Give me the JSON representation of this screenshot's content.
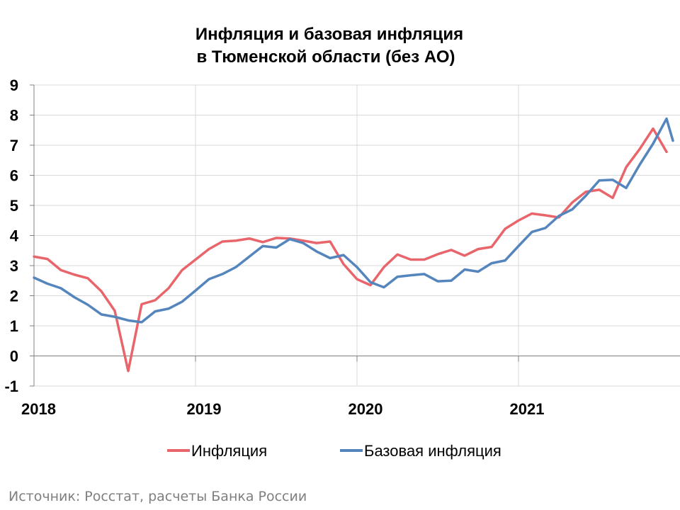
{
  "chart_data": {
    "type": "line",
    "title_line1": "Инфляция и базовая инфляция",
    "title_line2": "в  Тюменской области (без АО)",
    "xlabel": "",
    "ylabel": "",
    "ylim": [
      -1,
      9
    ],
    "y_ticks": [
      "-1",
      "0",
      "1",
      "2",
      "3",
      "4",
      "5",
      "6",
      "7",
      "8",
      "9"
    ],
    "x_ticks": [
      "2018",
      "2019",
      "2020",
      "2021"
    ],
    "grid": true,
    "legend_position": "bottom",
    "x_months": [
      "2018-01",
      "2018-02",
      "2018-03",
      "2018-04",
      "2018-05",
      "2018-06",
      "2018-07",
      "2018-08",
      "2018-09",
      "2018-10",
      "2018-11",
      "2018-12",
      "2019-01",
      "2019-02",
      "2019-03",
      "2019-04",
      "2019-05",
      "2019-06",
      "2019-07",
      "2019-08",
      "2019-09",
      "2019-10",
      "2019-11",
      "2019-12",
      "2020-01",
      "2020-02",
      "2020-03",
      "2020-04",
      "2020-05",
      "2020-06",
      "2020-07",
      "2020-08",
      "2020-09",
      "2020-10",
      "2020-11",
      "2020-12",
      "2021-01",
      "2021-02",
      "2021-03",
      "2021-04",
      "2021-05",
      "2021-06",
      "2021-07",
      "2021-08",
      "2021-09",
      "2021-10",
      "2021-11",
      "2021-12"
    ],
    "series": [
      {
        "name": "Инфляция",
        "color": "#e8666b",
        "values": [
          3.3,
          3.22,
          2.85,
          2.7,
          2.58,
          2.15,
          1.5,
          -0.5,
          1.72,
          1.85,
          2.25,
          2.85,
          3.2,
          3.55,
          3.8,
          3.83,
          3.9,
          3.78,
          3.92,
          3.9,
          3.83,
          3.75,
          3.8,
          3.05,
          2.55,
          2.35,
          2.95,
          3.37,
          3.2,
          3.2,
          3.38,
          3.52,
          3.33,
          3.55,
          3.62,
          4.22,
          4.5,
          4.73,
          4.67,
          4.6,
          5.1,
          5.45,
          5.52,
          5.25,
          6.27,
          6.87,
          7.55,
          6.78
        ]
      },
      {
        "name": "Базовая инфляция",
        "color": "#5585bd",
        "values": [
          2.6,
          2.4,
          2.25,
          1.95,
          1.7,
          1.38,
          1.3,
          1.18,
          1.12,
          1.48,
          1.57,
          1.8,
          2.17,
          2.55,
          2.72,
          2.95,
          3.3,
          3.65,
          3.6,
          3.88,
          3.75,
          3.47,
          3.25,
          3.35,
          2.95,
          2.45,
          2.28,
          2.63,
          2.68,
          2.72,
          2.48,
          2.5,
          2.87,
          2.8,
          3.08,
          3.17,
          3.65,
          4.12,
          4.25,
          4.65,
          4.87,
          5.32,
          5.83,
          5.85,
          5.58,
          6.35,
          7.05,
          7.88
        ]
      }
    ],
    "last_point_base": 7.15
  },
  "legend": {
    "inflation_label": "Инфляция",
    "core_label": "Базовая инфляция"
  },
  "source_text": "Источник: Росстат, расчеты Банка России"
}
